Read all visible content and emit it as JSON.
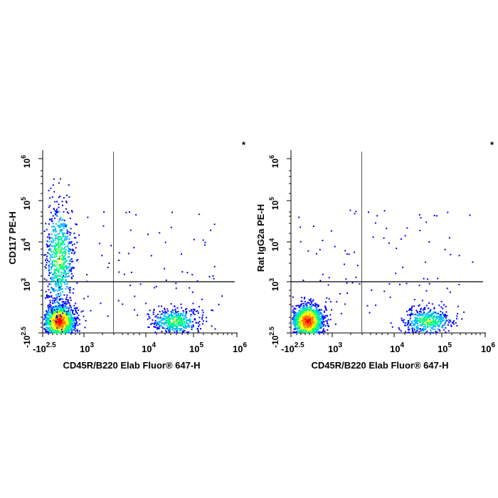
{
  "chart_data": [
    {
      "type": "scatter",
      "subtype": "flow-cytometry-density",
      "xlabel": "CD45R/B220 Elab Fluor® 647-H",
      "ylabel": "CD117 PE-H",
      "corner_mark": "*",
      "x_scale": "biexponential",
      "y_scale": "biexponential",
      "x_ticks": [
        {
          "base": "-10",
          "exp": "2.5"
        },
        {
          "base": "10",
          "exp": "3"
        },
        {
          "base": "10",
          "exp": "4"
        },
        {
          "base": "10",
          "exp": "5"
        },
        {
          "base": "10",
          "exp": "6"
        }
      ],
      "y_ticks": [
        {
          "base": "-10",
          "exp": "2.5"
        },
        {
          "base": "10",
          "exp": "3"
        },
        {
          "base": "10",
          "exp": "4"
        },
        {
          "base": "10",
          "exp": "5"
        },
        {
          "base": "10",
          "exp": "6"
        }
      ],
      "quadrant_gates": {
        "x": 3000,
        "y": 1000
      },
      "populations": [
        {
          "name": "B220-negative CD117-low",
          "x_center": 200,
          "y_center": 0,
          "relative_density": "very high"
        },
        {
          "name": "B220-negative CD117-positive",
          "x_center": 200,
          "y_center": 4000,
          "relative_density": "high"
        },
        {
          "name": "B220-positive CD117-negative",
          "x_center": 40000,
          "y_center": 0,
          "relative_density": "medium"
        }
      ],
      "color_scale": [
        "#0000ff",
        "#00b8ff",
        "#00ff80",
        "#ffff00",
        "#ff8000",
        "#ff0000"
      ]
    },
    {
      "type": "scatter",
      "subtype": "flow-cytometry-density",
      "xlabel": "CD45R/B220 Elab Fluor® 647-H",
      "ylabel": "Rat IgG2a PE-H",
      "corner_mark": "*",
      "x_scale": "biexponential",
      "y_scale": "biexponential",
      "x_ticks": [
        {
          "base": "-10",
          "exp": "2.5"
        },
        {
          "base": "10",
          "exp": "3"
        },
        {
          "base": "10",
          "exp": "4"
        },
        {
          "base": "10",
          "exp": "5"
        },
        {
          "base": "10",
          "exp": "6"
        }
      ],
      "y_ticks": [
        {
          "base": "-10",
          "exp": "2.5"
        },
        {
          "base": "10",
          "exp": "3"
        },
        {
          "base": "10",
          "exp": "4"
        },
        {
          "base": "10",
          "exp": "5"
        },
        {
          "base": "10",
          "exp": "6"
        }
      ],
      "quadrant_gates": {
        "x": 3000,
        "y": 1000
      },
      "populations": [
        {
          "name": "B220-negative isotype-negative",
          "x_center": 200,
          "y_center": 0,
          "relative_density": "very high"
        },
        {
          "name": "B220-positive isotype-negative",
          "x_center": 50000,
          "y_center": 0,
          "relative_density": "medium"
        }
      ],
      "color_scale": [
        "#0000ff",
        "#00b8ff",
        "#00ff80",
        "#ffff00",
        "#ff8000",
        "#ff0000"
      ]
    }
  ]
}
